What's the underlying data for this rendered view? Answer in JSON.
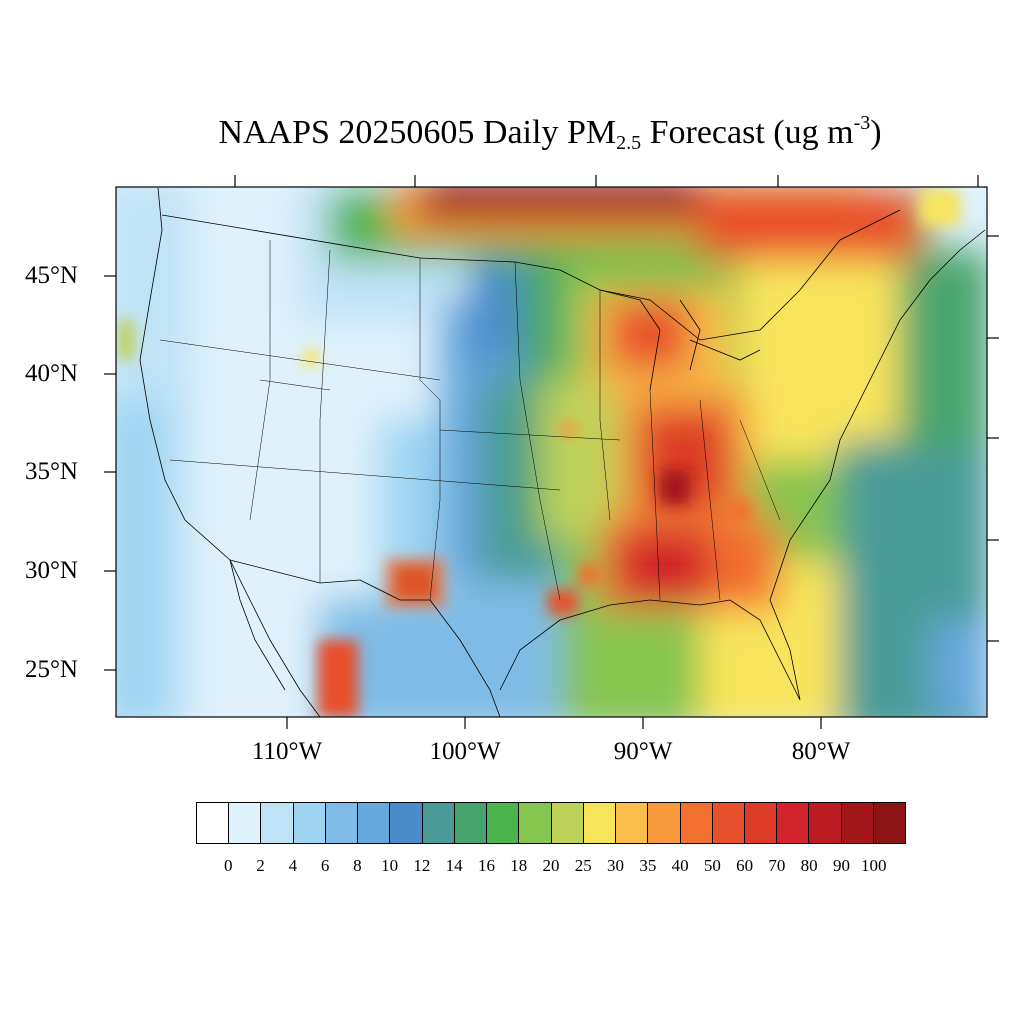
{
  "title": {
    "prefix": "NAAPS 20250605 Daily PM",
    "subscript": "2.5",
    "middle": " Forecast (ug m",
    "superscript": "-3",
    "suffix": ")"
  },
  "map": {
    "field": "PM2.5 daily forecast",
    "lon_range": [
      -125,
      -66
    ],
    "lat_range": [
      22,
      49
    ],
    "latitude_labels": [
      "45°N",
      "40°N",
      "35°N",
      "30°N",
      "25°N"
    ],
    "longitude_labels": [
      "110°W",
      "100°W",
      "90°W",
      "80°W"
    ]
  },
  "colorbar": {
    "colors": [
      "#ffffff",
      "#dff1fb",
      "#bfe3f6",
      "#9fd5f3",
      "#7fbbe6",
      "#67a8dd",
      "#4c8bca",
      "#4a9b97",
      "#48a46e",
      "#4cb44c",
      "#86c450",
      "#bed25a",
      "#f8e45b",
      "#f9be4a",
      "#f79a3d",
      "#f36f2f",
      "#e8502c",
      "#dd3a28",
      "#d2232a",
      "#bb1c22",
      "#a3171a",
      "#8c1414"
    ],
    "labels": [
      "0",
      "2",
      "4",
      "6",
      "8",
      "10",
      "12",
      "14",
      "16",
      "18",
      "20",
      "25",
      "30",
      "35",
      "40",
      "50",
      "60",
      "70",
      "80",
      "90",
      "100"
    ]
  }
}
